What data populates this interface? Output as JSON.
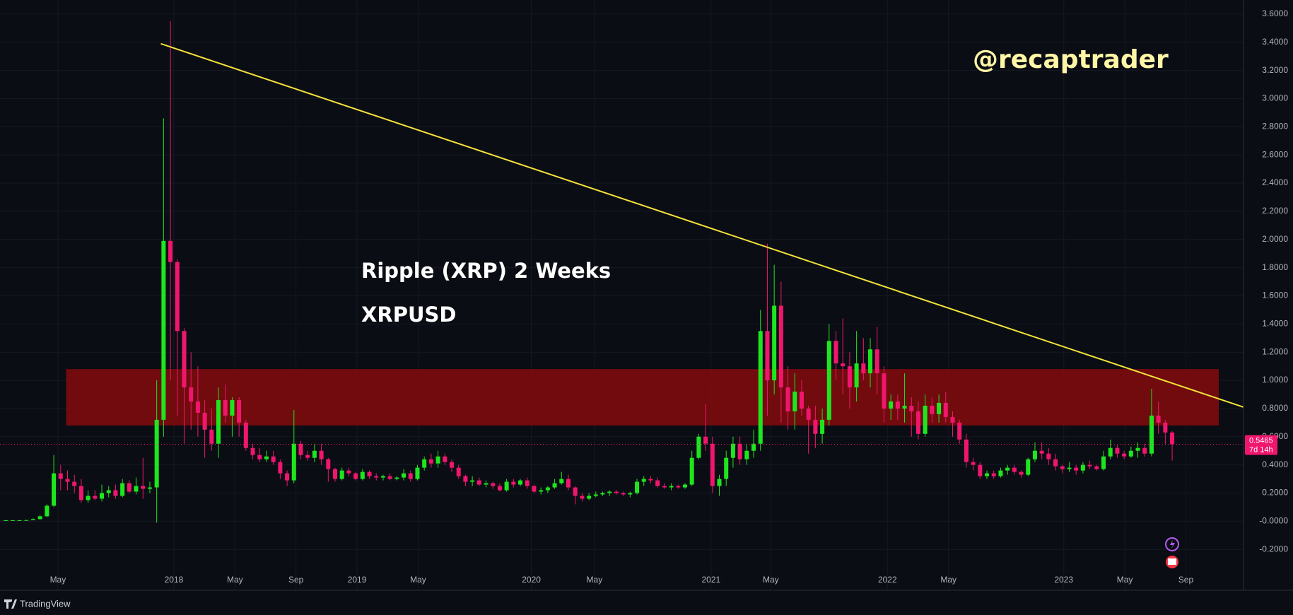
{
  "chart_data": {
    "type": "candlestick",
    "title": "Ripple (XRP) 2 Weeks",
    "subtitle": "XRPUSD",
    "watermark": "@recaptrader",
    "brand": "TradingView",
    "up_color": "#1ee61e",
    "down_color": "#f0166e",
    "grid": true,
    "xlim": [
      -0.84,
      180.4
    ],
    "ylim": [
      -0.49,
      3.7
    ],
    "yticks": [
      {
        "value": -0.2,
        "label": "-0.2000"
      },
      {
        "value": 0,
        "label": "-0.0000"
      },
      {
        "value": 0.2,
        "label": "0.2000"
      },
      {
        "value": 0.4,
        "label": "0.4000"
      },
      {
        "value": 0.6,
        "label": "0.6000"
      },
      {
        "value": 0.8,
        "label": "0.8000"
      },
      {
        "value": 1.0,
        "label": "1.0000"
      },
      {
        "value": 1.2,
        "label": "1.2000"
      },
      {
        "value": 1.4,
        "label": "1.4000"
      },
      {
        "value": 1.6,
        "label": "1.6000"
      },
      {
        "value": 1.8,
        "label": "1.8000"
      },
      {
        "value": 2.0,
        "label": "2.0000"
      },
      {
        "value": 2.2,
        "label": "2.2000"
      },
      {
        "value": 2.4,
        "label": "2.4000"
      },
      {
        "value": 2.6,
        "label": "2.6000"
      },
      {
        "value": 2.8,
        "label": "2.8000"
      },
      {
        "value": 3.0,
        "label": "3.0000"
      },
      {
        "value": 3.2,
        "label": "3.2000"
      },
      {
        "value": 3.4,
        "label": "3.4000"
      },
      {
        "value": 3.6,
        "label": "3.6000"
      }
    ],
    "xticks": [
      {
        "value": 7.6,
        "label": "May"
      },
      {
        "value": 24.5,
        "label": "2018"
      },
      {
        "value": 33.4,
        "label": "May"
      },
      {
        "value": 42.3,
        "label": "Sep"
      },
      {
        "value": 51.2,
        "label": "2019"
      },
      {
        "value": 60.1,
        "label": "May"
      },
      {
        "value": 76.6,
        "label": "2020"
      },
      {
        "value": 85.8,
        "label": "May"
      },
      {
        "value": 102.8,
        "label": "2021"
      },
      {
        "value": 111.5,
        "label": "May"
      },
      {
        "value": 128.5,
        "label": "2022"
      },
      {
        "value": 137.4,
        "label": "May"
      },
      {
        "value": 154.2,
        "label": "2023"
      },
      {
        "value": 163.1,
        "label": "May"
      },
      {
        "value": 172,
        "label": "Sep"
      }
    ],
    "last_price": 0.5465,
    "countdown": "7d 14h",
    "zone": {
      "x": [
        8.8,
        176.8
      ],
      "y": [
        0.68,
        1.08
      ],
      "color": "#8b0b0b"
    },
    "trendline": {
      "x": [
        22.6,
        180.4
      ],
      "y": [
        3.39,
        0.81
      ],
      "color": "#f3e33a"
    },
    "ohlc": [
      [
        0.006,
        0.008,
        0.005,
        0.007
      ],
      [
        0.007,
        0.008,
        0.006,
        0.007
      ],
      [
        0.007,
        0.009,
        0.006,
        0.007
      ],
      [
        0.007,
        0.01,
        0.006,
        0.008
      ],
      [
        0.008,
        0.02,
        0.007,
        0.015
      ],
      [
        0.015,
        0.045,
        0.012,
        0.035
      ],
      [
        0.035,
        0.12,
        0.03,
        0.11
      ],
      [
        0.11,
        0.47,
        0.1,
        0.34
      ],
      [
        0.34,
        0.4,
        0.22,
        0.3
      ],
      [
        0.3,
        0.36,
        0.22,
        0.28
      ],
      [
        0.28,
        0.33,
        0.2,
        0.25
      ],
      [
        0.25,
        0.3,
        0.13,
        0.15
      ],
      [
        0.15,
        0.22,
        0.13,
        0.18
      ],
      [
        0.18,
        0.22,
        0.15,
        0.16
      ],
      [
        0.16,
        0.26,
        0.14,
        0.2
      ],
      [
        0.2,
        0.25,
        0.17,
        0.22
      ],
      [
        0.22,
        0.26,
        0.16,
        0.18
      ],
      [
        0.18,
        0.3,
        0.17,
        0.27
      ],
      [
        0.27,
        0.29,
        0.2,
        0.21
      ],
      [
        0.21,
        0.31,
        0.19,
        0.25
      ],
      [
        0.25,
        0.45,
        0.16,
        0.23
      ],
      [
        0.23,
        0.28,
        0.2,
        0.24
      ],
      [
        0.24,
        1.0,
        -0.01,
        0.72
      ],
      [
        0.72,
        2.86,
        0.6,
        1.99
      ],
      [
        1.99,
        3.55,
        1.0,
        1.84
      ],
      [
        1.84,
        1.86,
        0.75,
        1.35
      ],
      [
        1.35,
        1.37,
        0.55,
        0.95
      ],
      [
        0.95,
        1.2,
        0.65,
        0.85
      ],
      [
        0.85,
        1.1,
        0.6,
        0.77
      ],
      [
        0.77,
        0.86,
        0.45,
        0.65
      ],
      [
        0.65,
        0.8,
        0.5,
        0.55
      ],
      [
        0.55,
        0.95,
        0.45,
        0.86
      ],
      [
        0.86,
        0.97,
        0.7,
        0.75
      ],
      [
        0.75,
        0.88,
        0.6,
        0.86
      ],
      [
        0.86,
        0.88,
        0.6,
        0.7
      ],
      [
        0.7,
        0.72,
        0.5,
        0.52
      ],
      [
        0.52,
        0.55,
        0.44,
        0.47
      ],
      [
        0.47,
        0.52,
        0.42,
        0.44
      ],
      [
        0.44,
        0.5,
        0.42,
        0.46
      ],
      [
        0.46,
        0.5,
        0.4,
        0.42
      ],
      [
        0.42,
        0.44,
        0.3,
        0.34
      ],
      [
        0.34,
        0.36,
        0.25,
        0.29
      ],
      [
        0.29,
        0.79,
        0.27,
        0.55
      ],
      [
        0.55,
        0.57,
        0.44,
        0.47
      ],
      [
        0.47,
        0.5,
        0.43,
        0.45
      ],
      [
        0.45,
        0.55,
        0.42,
        0.5
      ],
      [
        0.5,
        0.55,
        0.4,
        0.44
      ],
      [
        0.44,
        0.45,
        0.28,
        0.37
      ],
      [
        0.37,
        0.38,
        0.28,
        0.3
      ],
      [
        0.3,
        0.38,
        0.29,
        0.36
      ],
      [
        0.36,
        0.38,
        0.32,
        0.34
      ],
      [
        0.34,
        0.35,
        0.29,
        0.3
      ],
      [
        0.3,
        0.37,
        0.29,
        0.35
      ],
      [
        0.35,
        0.36,
        0.3,
        0.32
      ],
      [
        0.32,
        0.34,
        0.29,
        0.31
      ],
      [
        0.31,
        0.33,
        0.29,
        0.32
      ],
      [
        0.32,
        0.34,
        0.29,
        0.3
      ],
      [
        0.3,
        0.32,
        0.29,
        0.31
      ],
      [
        0.31,
        0.37,
        0.29,
        0.34
      ],
      [
        0.34,
        0.36,
        0.28,
        0.3
      ],
      [
        0.3,
        0.4,
        0.29,
        0.38
      ],
      [
        0.38,
        0.46,
        0.36,
        0.44
      ],
      [
        0.44,
        0.48,
        0.38,
        0.41
      ],
      [
        0.41,
        0.5,
        0.38,
        0.46
      ],
      [
        0.46,
        0.48,
        0.4,
        0.42
      ],
      [
        0.42,
        0.44,
        0.35,
        0.38
      ],
      [
        0.38,
        0.4,
        0.3,
        0.32
      ],
      [
        0.32,
        0.33,
        0.25,
        0.28
      ],
      [
        0.28,
        0.32,
        0.25,
        0.29
      ],
      [
        0.29,
        0.31,
        0.25,
        0.26
      ],
      [
        0.26,
        0.29,
        0.24,
        0.27
      ],
      [
        0.27,
        0.28,
        0.23,
        0.25
      ],
      [
        0.25,
        0.27,
        0.21,
        0.22
      ],
      [
        0.22,
        0.3,
        0.21,
        0.28
      ],
      [
        0.28,
        0.3,
        0.24,
        0.26
      ],
      [
        0.26,
        0.3,
        0.25,
        0.29
      ],
      [
        0.29,
        0.31,
        0.23,
        0.25
      ],
      [
        0.25,
        0.26,
        0.2,
        0.21
      ],
      [
        0.21,
        0.24,
        0.19,
        0.22
      ],
      [
        0.22,
        0.25,
        0.2,
        0.24
      ],
      [
        0.24,
        0.3,
        0.23,
        0.27
      ],
      [
        0.27,
        0.35,
        0.26,
        0.3
      ],
      [
        0.3,
        0.33,
        0.22,
        0.24
      ],
      [
        0.24,
        0.25,
        0.12,
        0.18
      ],
      [
        0.18,
        0.2,
        0.14,
        0.16
      ],
      [
        0.16,
        0.2,
        0.15,
        0.18
      ],
      [
        0.18,
        0.21,
        0.17,
        0.19
      ],
      [
        0.19,
        0.21,
        0.18,
        0.2
      ],
      [
        0.2,
        0.22,
        0.18,
        0.21
      ],
      [
        0.21,
        0.22,
        0.19,
        0.2
      ],
      [
        0.2,
        0.21,
        0.18,
        0.19
      ],
      [
        0.19,
        0.21,
        0.17,
        0.2
      ],
      [
        0.2,
        0.3,
        0.19,
        0.28
      ],
      [
        0.28,
        0.32,
        0.25,
        0.3
      ],
      [
        0.3,
        0.32,
        0.27,
        0.29
      ],
      [
        0.29,
        0.31,
        0.24,
        0.25
      ],
      [
        0.25,
        0.27,
        0.23,
        0.24
      ],
      [
        0.24,
        0.27,
        0.22,
        0.25
      ],
      [
        0.25,
        0.26,
        0.23,
        0.24
      ],
      [
        0.24,
        0.27,
        0.23,
        0.26
      ],
      [
        0.26,
        0.5,
        0.25,
        0.45
      ],
      [
        0.45,
        0.62,
        0.44,
        0.6
      ],
      [
        0.6,
        0.83,
        0.5,
        0.55
      ],
      [
        0.55,
        0.6,
        0.2,
        0.25
      ],
      [
        0.25,
        0.33,
        0.18,
        0.3
      ],
      [
        0.3,
        0.5,
        0.25,
        0.45
      ],
      [
        0.45,
        0.6,
        0.38,
        0.55
      ],
      [
        0.55,
        0.6,
        0.4,
        0.44
      ],
      [
        0.44,
        0.55,
        0.4,
        0.5
      ],
      [
        0.5,
        0.65,
        0.45,
        0.55
      ],
      [
        0.55,
        1.5,
        0.5,
        1.35
      ],
      [
        1.35,
        1.97,
        0.75,
        1.0
      ],
      [
        1.0,
        1.82,
        0.9,
        1.53
      ],
      [
        1.53,
        1.7,
        0.7,
        0.95
      ],
      [
        0.95,
        1.1,
        0.65,
        0.78
      ],
      [
        0.78,
        1.05,
        0.65,
        0.92
      ],
      [
        0.92,
        1.0,
        0.75,
        0.8
      ],
      [
        0.8,
        0.82,
        0.48,
        0.72
      ],
      [
        0.72,
        0.82,
        0.52,
        0.62
      ],
      [
        0.62,
        0.8,
        0.55,
        0.72
      ],
      [
        0.72,
        1.4,
        0.68,
        1.28
      ],
      [
        1.28,
        1.35,
        1.0,
        1.12
      ],
      [
        1.12,
        1.44,
        0.9,
        1.1
      ],
      [
        1.1,
        1.2,
        0.8,
        0.95
      ],
      [
        0.95,
        1.35,
        0.85,
        1.12
      ],
      [
        1.12,
        1.3,
        1.0,
        1.05
      ],
      [
        1.05,
        1.3,
        0.95,
        1.22
      ],
      [
        1.22,
        1.38,
        0.9,
        1.05
      ],
      [
        1.05,
        1.1,
        0.7,
        0.8
      ],
      [
        0.8,
        0.9,
        0.72,
        0.85
      ],
      [
        0.85,
        0.9,
        0.72,
        0.8
      ],
      [
        0.8,
        1.05,
        0.7,
        0.82
      ],
      [
        0.82,
        0.88,
        0.6,
        0.78
      ],
      [
        0.78,
        0.85,
        0.58,
        0.62
      ],
      [
        0.62,
        0.9,
        0.6,
        0.82
      ],
      [
        0.82,
        0.88,
        0.7,
        0.76
      ],
      [
        0.76,
        0.9,
        0.7,
        0.84
      ],
      [
        0.84,
        0.92,
        0.7,
        0.74
      ],
      [
        0.74,
        0.78,
        0.6,
        0.7
      ],
      [
        0.7,
        0.72,
        0.55,
        0.58
      ],
      [
        0.58,
        0.62,
        0.38,
        0.42
      ],
      [
        0.42,
        0.45,
        0.36,
        0.4
      ],
      [
        0.4,
        0.42,
        0.3,
        0.32
      ],
      [
        0.32,
        0.36,
        0.3,
        0.34
      ],
      [
        0.34,
        0.36,
        0.3,
        0.32
      ],
      [
        0.32,
        0.38,
        0.31,
        0.36
      ],
      [
        0.36,
        0.4,
        0.33,
        0.38
      ],
      [
        0.38,
        0.4,
        0.33,
        0.35
      ],
      [
        0.35,
        0.36,
        0.31,
        0.33
      ],
      [
        0.33,
        0.45,
        0.32,
        0.44
      ],
      [
        0.44,
        0.56,
        0.42,
        0.5
      ],
      [
        0.5,
        0.56,
        0.44,
        0.48
      ],
      [
        0.48,
        0.52,
        0.4,
        0.44
      ],
      [
        0.44,
        0.48,
        0.36,
        0.39
      ],
      [
        0.39,
        0.4,
        0.34,
        0.37
      ],
      [
        0.37,
        0.42,
        0.35,
        0.38
      ],
      [
        0.38,
        0.4,
        0.33,
        0.36
      ],
      [
        0.36,
        0.42,
        0.34,
        0.4
      ],
      [
        0.4,
        0.43,
        0.37,
        0.39
      ],
      [
        0.39,
        0.4,
        0.36,
        0.37
      ],
      [
        0.37,
        0.5,
        0.36,
        0.46
      ],
      [
        0.46,
        0.58,
        0.44,
        0.52
      ],
      [
        0.52,
        0.54,
        0.45,
        0.48
      ],
      [
        0.48,
        0.5,
        0.44,
        0.46
      ],
      [
        0.46,
        0.53,
        0.45,
        0.5
      ],
      [
        0.5,
        0.56,
        0.45,
        0.52
      ],
      [
        0.52,
        0.55,
        0.46,
        0.48
      ],
      [
        0.48,
        0.94,
        0.46,
        0.75
      ],
      [
        0.75,
        0.85,
        0.62,
        0.7
      ],
      [
        0.7,
        0.72,
        0.55,
        0.63
      ],
      [
        0.63,
        0.64,
        0.43,
        0.5465
      ]
    ]
  }
}
